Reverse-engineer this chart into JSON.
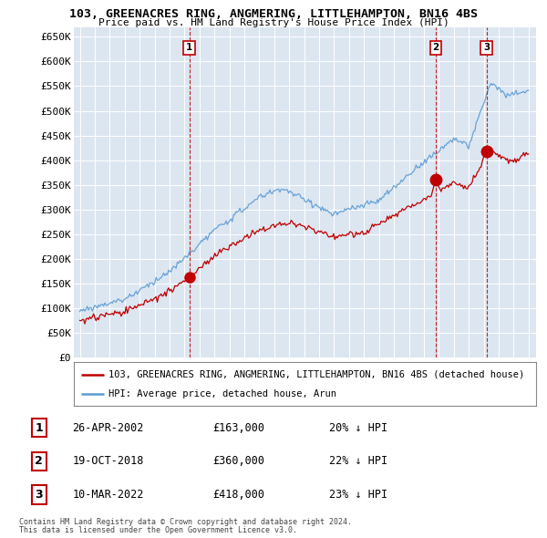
{
  "title": "103, GREENACRES RING, ANGMERING, LITTLEHAMPTON, BN16 4BS",
  "subtitle": "Price paid vs. HM Land Registry's House Price Index (HPI)",
  "ytick_labels": [
    "£0",
    "£50K",
    "£100K",
    "£150K",
    "£200K",
    "£250K",
    "£300K",
    "£350K",
    "£400K",
    "£450K",
    "£500K",
    "£550K",
    "£600K",
    "£650K"
  ],
  "ytick_values": [
    0,
    50000,
    100000,
    150000,
    200000,
    250000,
    300000,
    350000,
    400000,
    450000,
    500000,
    550000,
    600000,
    650000
  ],
  "x_start_year": 1995,
  "x_end_year": 2025,
  "hpi_color": "#5b9bd5",
  "price_color": "#c00000",
  "vline_color": "#c00000",
  "transactions": [
    {
      "num": 1,
      "date": "26-APR-2002",
      "price": 163000,
      "price_str": "£163,000",
      "pct": "20%",
      "year": 2002.32
    },
    {
      "num": 2,
      "date": "19-OCT-2018",
      "price": 360000,
      "price_str": "£360,000",
      "pct": "22%",
      "year": 2018.8
    },
    {
      "num": 3,
      "date": "10-MAR-2022",
      "price": 418000,
      "price_str": "£418,000",
      "pct": "23%",
      "year": 2022.19
    }
  ],
  "legend_entries": [
    "103, GREENACRES RING, ANGMERING, LITTLEHAMPTON, BN16 4BS (detached house)",
    "HPI: Average price, detached house, Arun"
  ],
  "footer_line1": "Contains HM Land Registry data © Crown copyright and database right 2024.",
  "footer_line2": "This data is licensed under the Open Government Licence v3.0.",
  "background_color": "#ffffff",
  "plot_bg_color": "#dce6f1"
}
